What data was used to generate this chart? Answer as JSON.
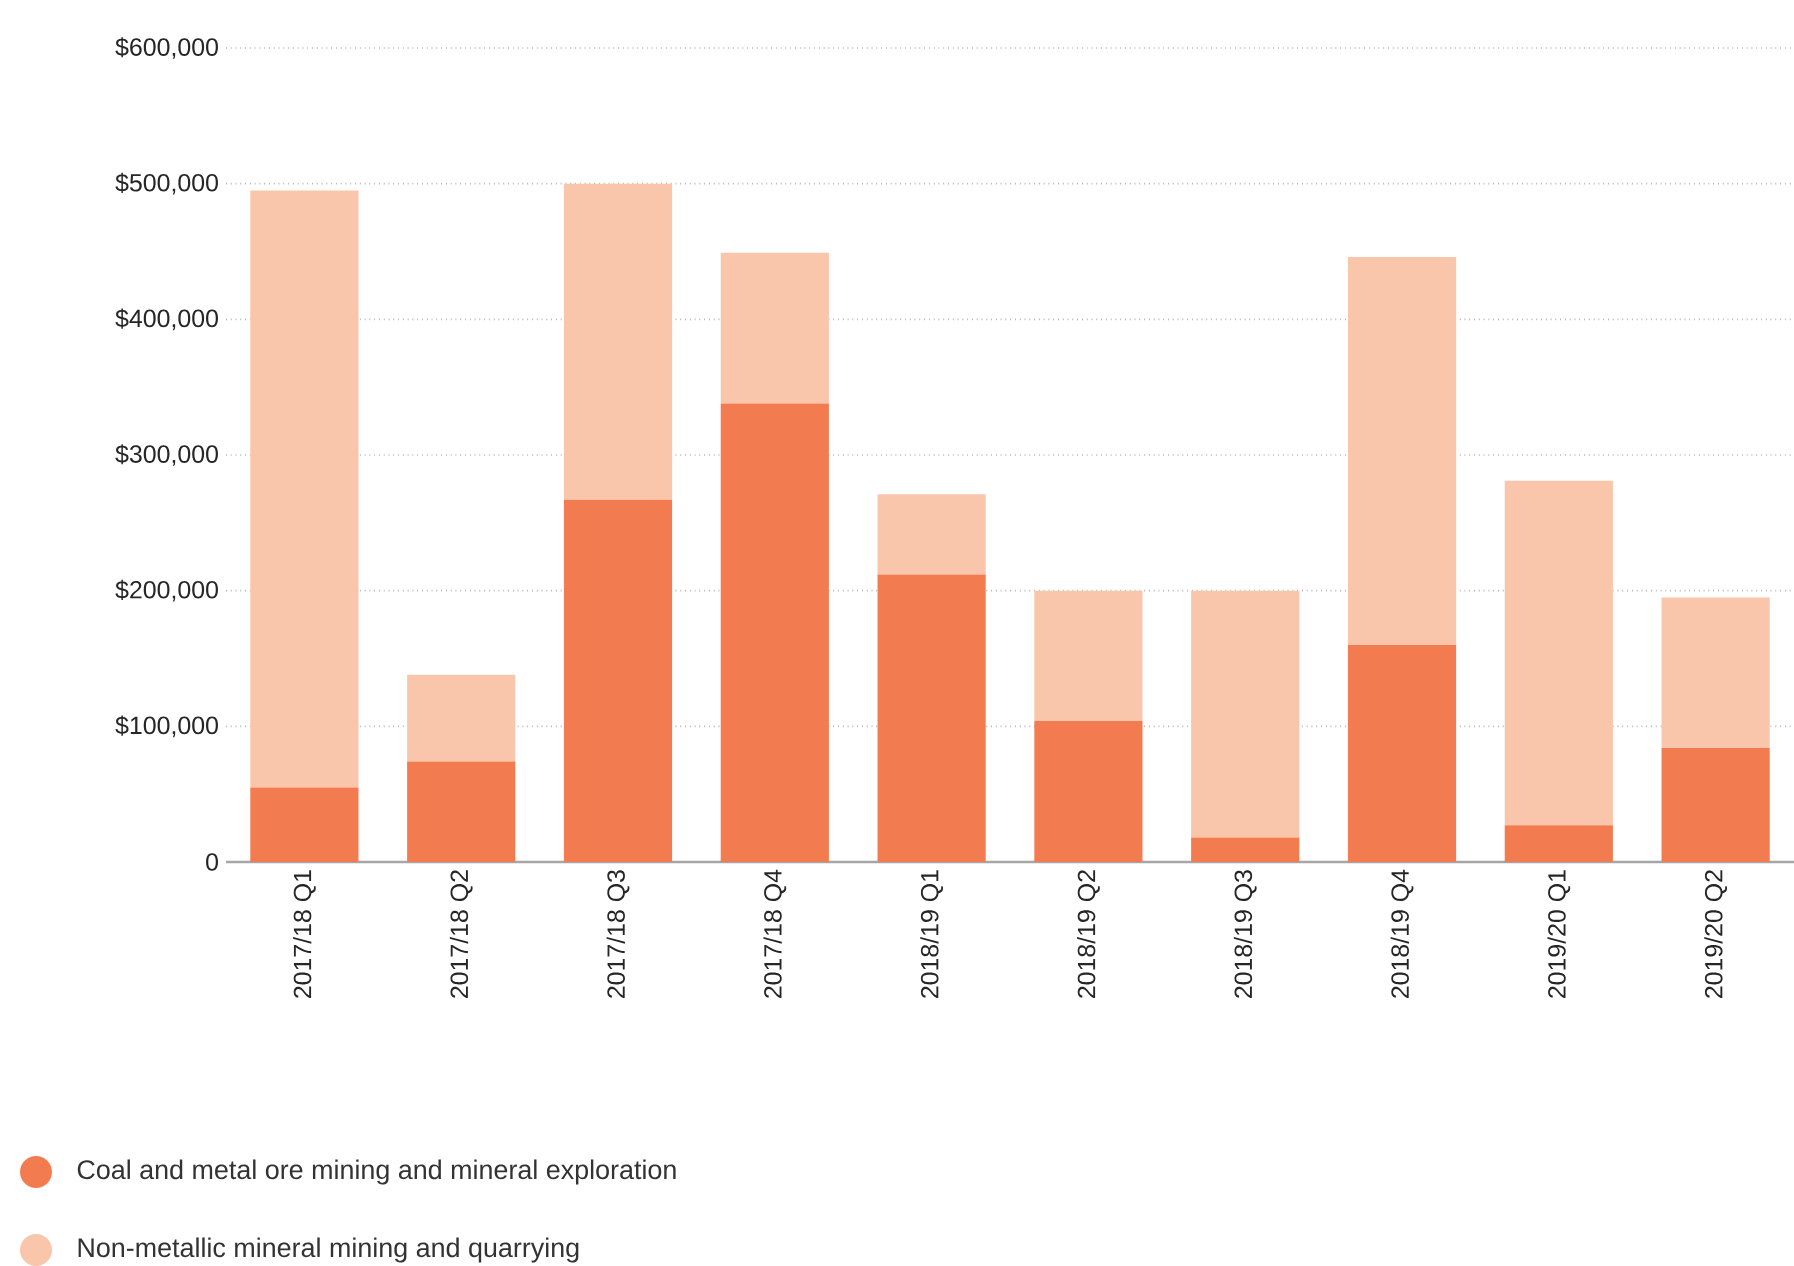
{
  "chart_data": {
    "type": "bar",
    "stacked": true,
    "categories": [
      "2017/18 Q1",
      "2017/18 Q2",
      "2017/18 Q3",
      "2017/18 Q4",
      "2018/19 Q1",
      "2018/19 Q2",
      "2018/19 Q3",
      "2018/19 Q4",
      "2019/20 Q1",
      "2019/20 Q2"
    ],
    "series": [
      {
        "name": "Coal and metal ore mining and mineral exploration",
        "color": "#f37b50",
        "values": [
          55000,
          74000,
          267000,
          338000,
          212000,
          104000,
          18000,
          160000,
          27000,
          84000
        ]
      },
      {
        "name": "Non-metallic mineral mining and quarrying",
        "color": "#fac6ab",
        "values": [
          440000,
          64000,
          233000,
          111000,
          59000,
          96000,
          182000,
          286000,
          254000,
          111000
        ]
      }
    ],
    "ylim": [
      0,
      600000
    ],
    "yticks": [
      {
        "value": 0,
        "label": "0"
      },
      {
        "value": 100000,
        "label": "$100,000"
      },
      {
        "value": 200000,
        "label": "$200,000"
      },
      {
        "value": 300000,
        "label": "$300,000"
      },
      {
        "value": 400000,
        "label": "$400,000"
      },
      {
        "value": 500000,
        "label": "$500,000"
      },
      {
        "value": 600000,
        "label": "$600,000"
      }
    ],
    "grid": "y",
    "legend": "bottom left"
  }
}
